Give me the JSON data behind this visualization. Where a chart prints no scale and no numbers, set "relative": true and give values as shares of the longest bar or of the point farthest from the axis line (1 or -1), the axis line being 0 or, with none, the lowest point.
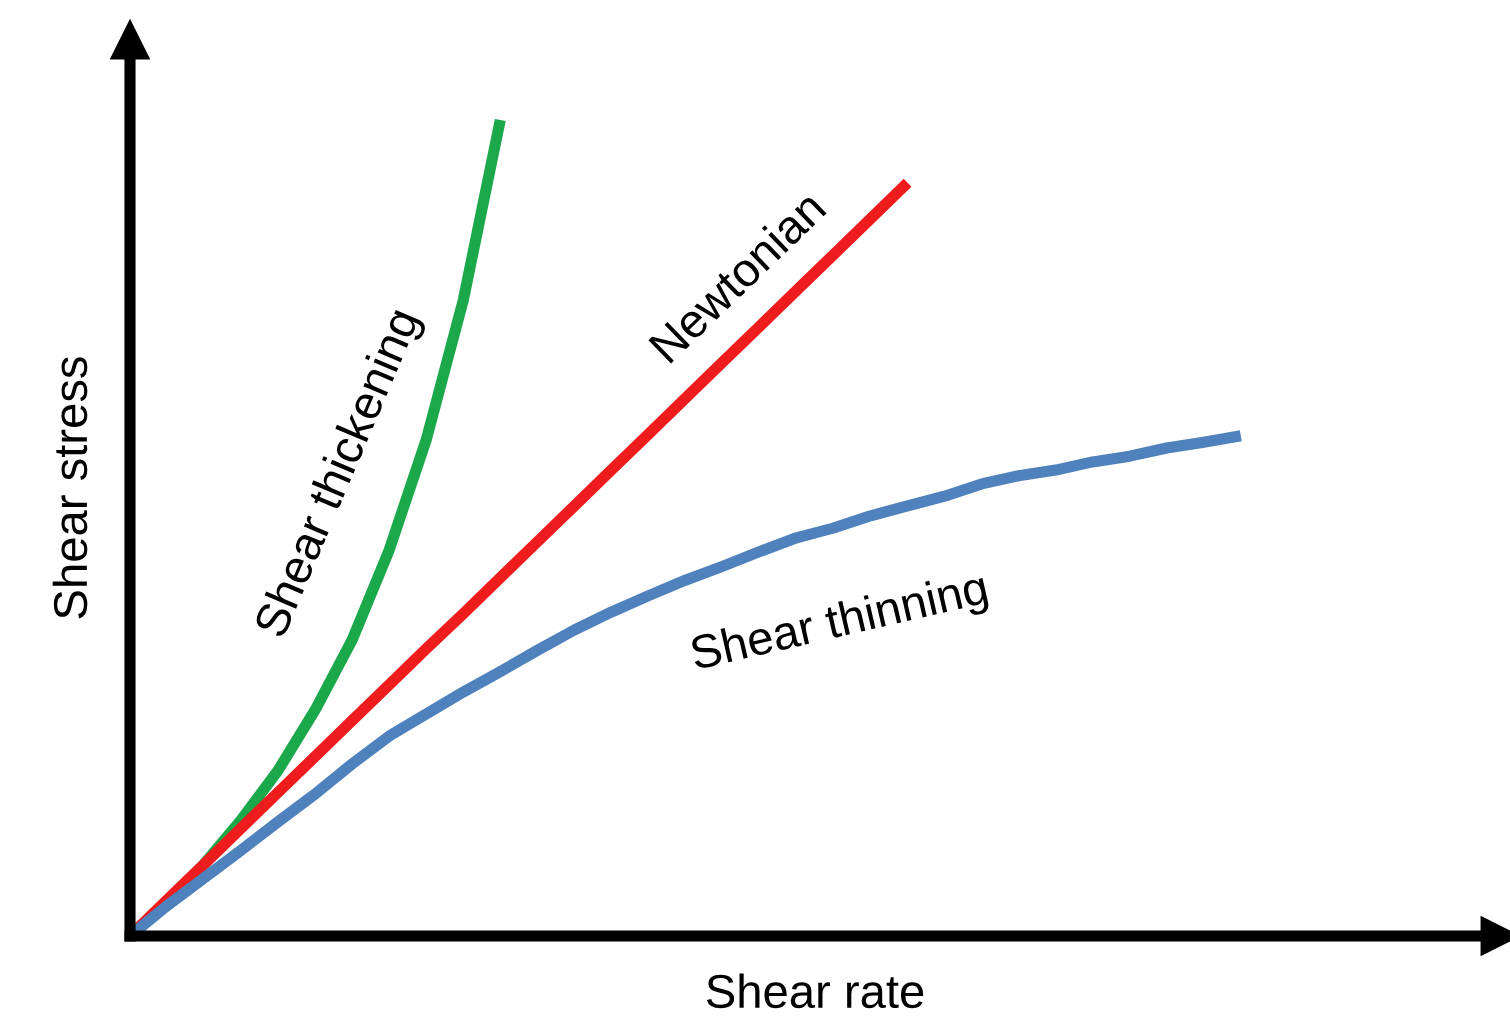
{
  "chart_data": {
    "type": "line",
    "relative": true,
    "xlabel": "Shear rate",
    "ylabel": "Shear stress",
    "categories": [
      null,
      null,
      null,
      null,
      null,
      null,
      null,
      null,
      null,
      null,
      null,
      null,
      null,
      null,
      null,
      null,
      null,
      null,
      null,
      null,
      null,
      null,
      null,
      null,
      null,
      null,
      null,
      null,
      null,
      null,
      null,
      null,
      null,
      null,
      null,
      null,
      null,
      null
    ],
    "series": [
      {
        "color": "#1aa84a",
        "values": [
          0,
          0.042,
          0.088,
          0.142,
          0.203,
          0.277,
          0.363,
          0.473,
          0.608,
          0.779,
          1,
          null,
          null,
          null,
          null,
          null,
          null,
          null,
          null,
          null,
          null,
          null,
          null,
          null,
          null,
          null,
          null,
          null,
          null,
          null,
          null,
          null,
          null,
          null,
          null,
          null,
          null,
          null
        ]
      },
      {
        "color": "#ee1c1c",
        "values": [
          0,
          0.044,
          0.088,
          0.132,
          0.176,
          0.22,
          0.264,
          0.308,
          0.352,
          0.395,
          0.439,
          0.483,
          0.527,
          0.571,
          0.615,
          0.659,
          0.703,
          0.747,
          0.791,
          0.835,
          0.879,
          0.923,
          null,
          null,
          null,
          null,
          null,
          null,
          null,
          null,
          null,
          null,
          null,
          null,
          null,
          null,
          null,
          null
        ]
      },
      {
        "color": "#4f81bd",
        "values": [
          0,
          0.037,
          0.071,
          0.105,
          0.14,
          0.174,
          0.211,
          0.245,
          0.272,
          0.299,
          0.324,
          0.35,
          0.375,
          0.397,
          0.417,
          0.436,
          0.453,
          0.471,
          0.488,
          0.5,
          0.515,
          0.527,
          0.539,
          0.554,
          0.564,
          0.571,
          0.581,
          0.588,
          0.598,
          0.605,
          0.613,
          null,
          null,
          null,
          null,
          null,
          null,
          null
        ]
      }
    ],
    "annotations": [
      "Shear thickening",
      "Newtonian",
      "Shear thinning"
    ]
  }
}
